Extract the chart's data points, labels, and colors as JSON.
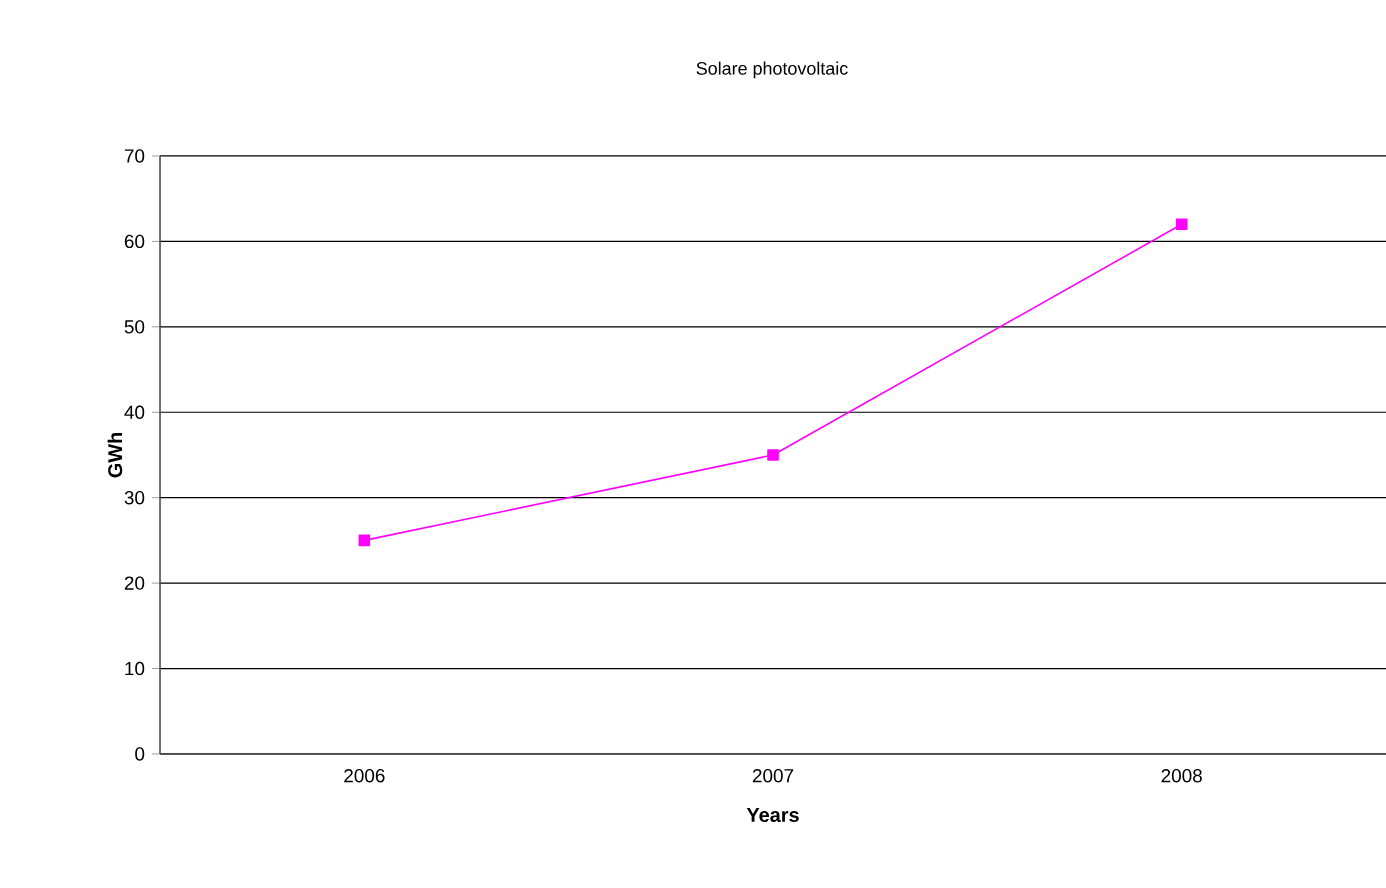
{
  "chart_data": {
    "type": "line",
    "title": "Solare photovoltaic",
    "xlabel": "Years",
    "ylabel": "GWh",
    "categories": [
      "2006",
      "2007",
      "2008"
    ],
    "series": [
      {
        "color": "#ff00ff",
        "values": [
          25,
          35,
          62
        ]
      }
    ],
    "ylim": [
      0,
      70
    ],
    "yticks": [
      0,
      10,
      20,
      30,
      40,
      50,
      60,
      70
    ],
    "grid": "y",
    "marker": "square",
    "line_style": "solid"
  }
}
